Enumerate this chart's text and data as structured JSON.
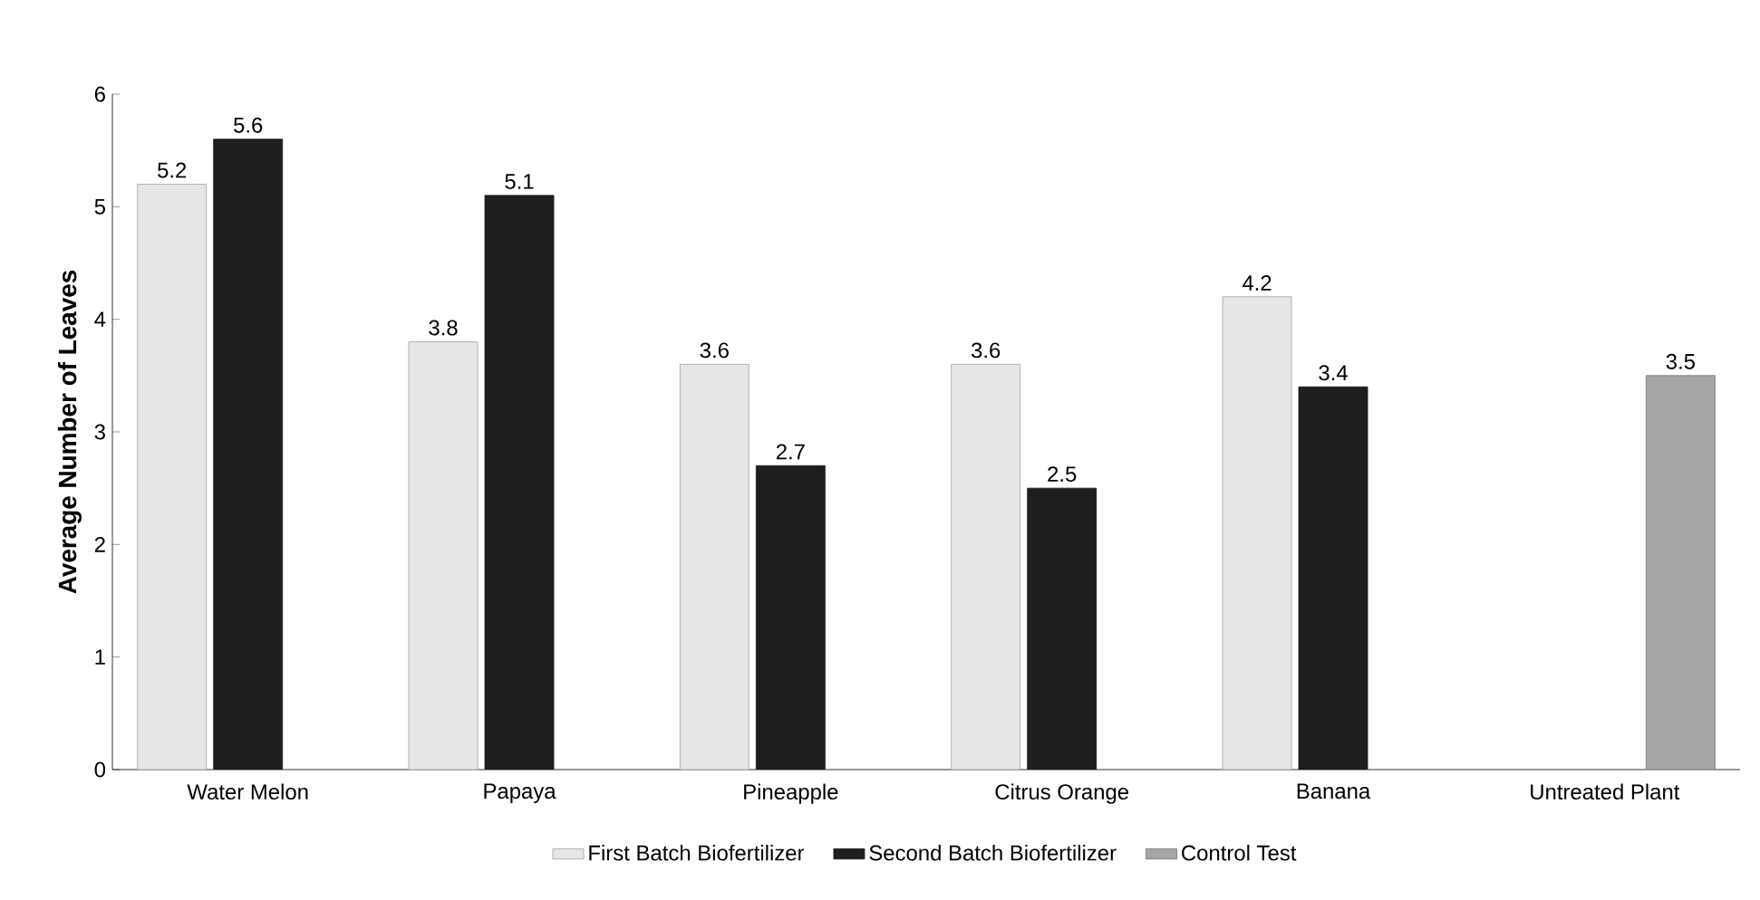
{
  "chart_data": {
    "type": "bar",
    "ylabel": "Average Number of Leaves",
    "categories": [
      "Water Melon",
      "Papaya",
      "Pineapple",
      "Citrus Orange",
      "Banana",
      "Untreated Plant"
    ],
    "series": [
      {
        "name": "First Batch Biofertilizer",
        "color": "#e6e6e6",
        "values": [
          5.2,
          3.8,
          3.6,
          3.6,
          4.2,
          null
        ]
      },
      {
        "name": "Second Batch Biofertilizer",
        "color": "#1e1e1e",
        "values": [
          5.6,
          5.1,
          2.7,
          2.5,
          3.4,
          null
        ]
      },
      {
        "name": "Control Test",
        "color": "#a6a6a6",
        "values": [
          null,
          null,
          null,
          null,
          null,
          3.5
        ]
      }
    ],
    "ylim": [
      0,
      6
    ],
    "yticks": [
      0,
      1,
      2,
      3,
      4,
      5,
      6
    ],
    "data_labels": true,
    "legend": "bottom",
    "grid": false
  }
}
